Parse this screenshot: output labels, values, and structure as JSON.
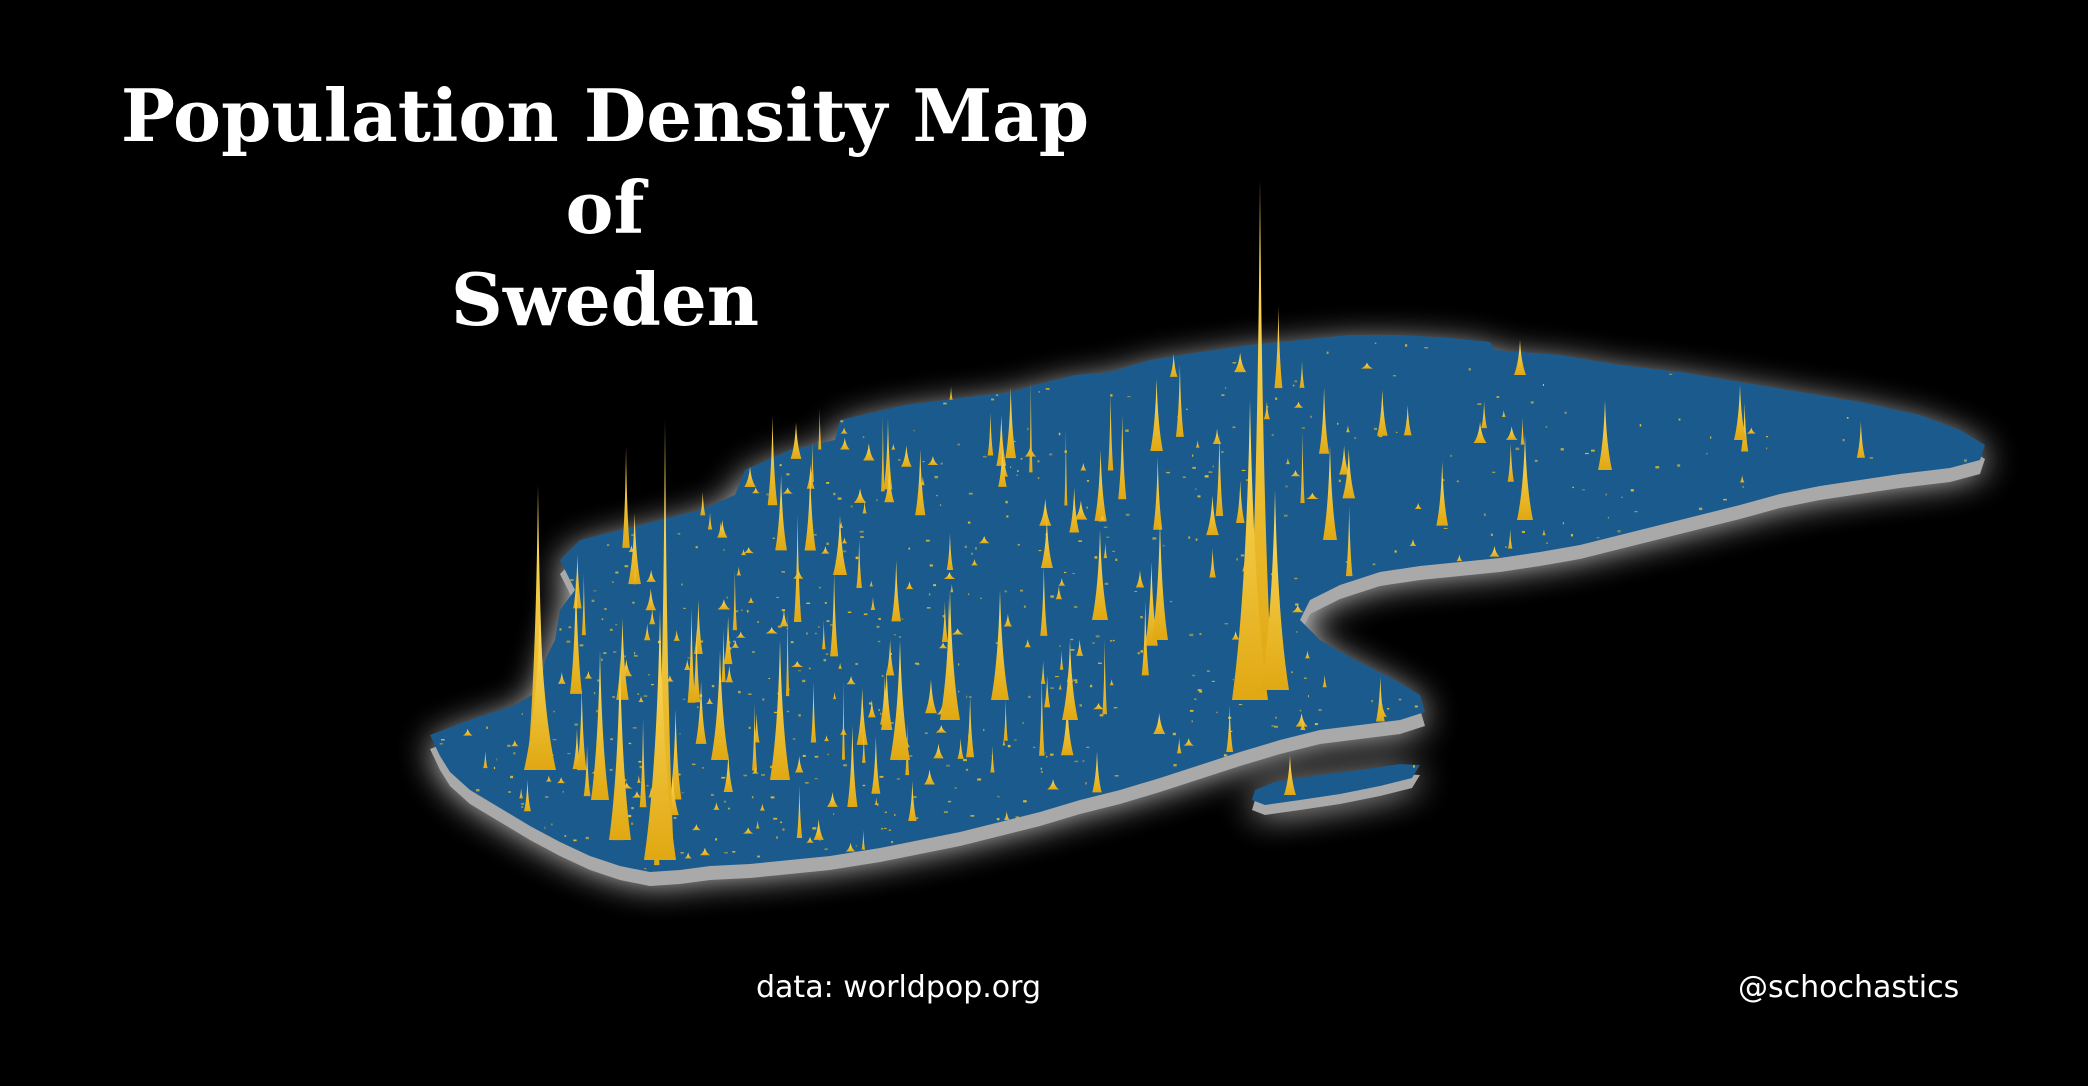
{
  "title": {
    "line1": "Population Density Map",
    "line2": "of",
    "line3": "Sweden"
  },
  "credits": {
    "data_source": "data: worldpop.org",
    "author": "@schochastics"
  },
  "colors": {
    "background": "#000000",
    "land": "#1b5a8c",
    "land_side": "#a9a9a9",
    "glow": "#ffffff",
    "spike": "#f2c42b"
  }
}
